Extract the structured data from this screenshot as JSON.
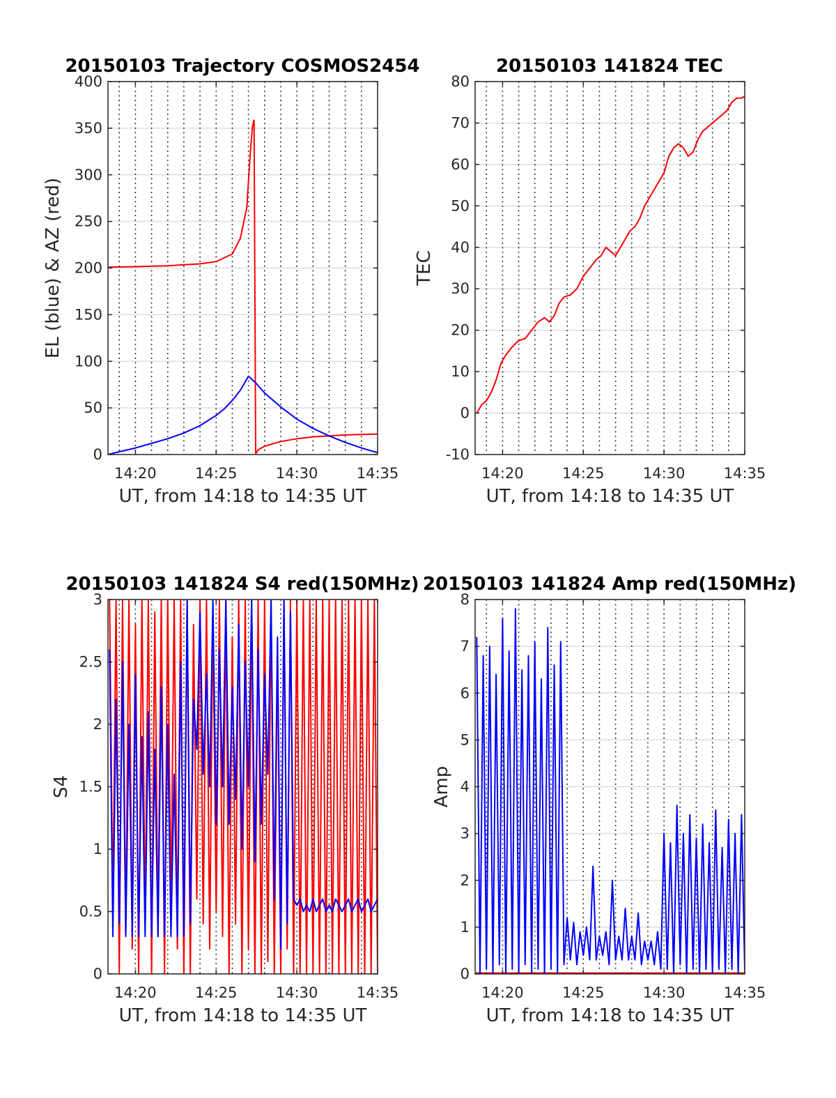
{
  "figure": {
    "colors": {
      "red": "#ff0000",
      "blue": "#0000ff",
      "grid_y": "#dedede",
      "grid_x": "#000000",
      "axis": "#262626"
    }
  },
  "chart_data": [
    {
      "id": "trajectory",
      "type": "line",
      "title": "20150103 Trajectory COSMOS2454",
      "xlabel": "UT, from 14:18 to 14:35 UT",
      "ylabel": "EL (blue) & AZ (red)",
      "xlim": [
        18.3,
        35
      ],
      "ylim": [
        0,
        400
      ],
      "yticks": [
        0,
        50,
        100,
        150,
        200,
        250,
        300,
        350,
        400
      ],
      "xticks": [
        {
          "v": 20,
          "label": "14:20"
        },
        {
          "v": 25,
          "label": "14:25"
        },
        {
          "v": 30,
          "label": "14:30"
        },
        {
          "v": 35,
          "label": "14:35"
        }
      ],
      "vgrid_minutes": [
        19,
        20,
        21,
        22,
        23,
        24,
        25,
        26,
        27,
        28,
        29,
        30,
        31,
        32,
        33,
        34
      ],
      "series": [
        {
          "color": "red",
          "x": [
            18.3,
            20,
            22,
            24,
            25,
            26,
            26.5,
            26.9,
            27.1,
            27.25,
            27.35
          ],
          "y": [
            201,
            201.5,
            202.5,
            204.5,
            207,
            215,
            232,
            265,
            320,
            352,
            359
          ]
        },
        {
          "color": "red",
          "x": [
            27.35,
            27.45
          ],
          "y": [
            359,
            1
          ]
        },
        {
          "color": "red",
          "x": [
            27.45,
            27.6,
            28,
            29,
            30,
            31,
            33,
            35
          ],
          "y": [
            1,
            5,
            9,
            14,
            17,
            19,
            21,
            22
          ]
        },
        {
          "color": "blue",
          "x": [
            18.3,
            19,
            20,
            21,
            22,
            23,
            24,
            25,
            25.5,
            26,
            26.5,
            27,
            27.5,
            28,
            29,
            30,
            31,
            32,
            33,
            34,
            35
          ],
          "y": [
            0,
            3,
            7,
            12,
            17,
            23,
            31,
            42,
            49,
            58,
            69,
            84,
            76,
            66,
            51,
            38,
            28,
            20,
            13,
            7,
            2
          ]
        }
      ]
    },
    {
      "id": "tec",
      "type": "line",
      "title": "20150103 141824 TEC",
      "xlabel": "UT, from 14:18 to 14:35 UT",
      "ylabel": "TEC",
      "xlim": [
        18.3,
        35
      ],
      "ylim": [
        -10,
        80
      ],
      "yticks": [
        -10,
        0,
        10,
        20,
        30,
        40,
        50,
        60,
        70,
        80
      ],
      "xticks": [
        {
          "v": 20,
          "label": "14:20"
        },
        {
          "v": 25,
          "label": "14:25"
        },
        {
          "v": 30,
          "label": "14:30"
        },
        {
          "v": 35,
          "label": "14:35"
        }
      ],
      "vgrid_minutes": [
        19,
        20,
        21,
        22,
        23,
        24,
        25,
        26,
        27,
        28,
        29,
        30,
        31,
        32,
        33,
        34
      ],
      "series": [
        {
          "color": "red",
          "x": [
            18.4,
            18.7,
            19.0,
            19.3,
            19.6,
            19.9,
            20.2,
            20.6,
            21.0,
            21.4,
            21.8,
            22.2,
            22.6,
            22.9,
            23.2,
            23.5,
            23.8,
            24.2,
            24.6,
            25.0,
            25.4,
            25.8,
            26.1,
            26.4,
            26.7,
            27.0,
            27.3,
            27.6,
            27.9,
            28.2,
            28.5,
            28.8,
            29.1,
            29.4,
            29.7,
            30.0,
            30.3,
            30.6,
            30.9,
            31.2,
            31.5,
            31.8,
            32.1,
            32.4,
            32.7,
            33.0,
            33.3,
            33.6,
            33.9,
            34.2,
            34.5,
            34.8,
            35.0
          ],
          "y": [
            0,
            2,
            3,
            5,
            8,
            12,
            14,
            16,
            17.5,
            18,
            20,
            22,
            23,
            22,
            23.5,
            26.5,
            28,
            28.5,
            30,
            33,
            35,
            37,
            38,
            40,
            39,
            38,
            40,
            42,
            44,
            45,
            47,
            50,
            52,
            54,
            56,
            58,
            62,
            64,
            65,
            64,
            62,
            63,
            66,
            68,
            69,
            70,
            71,
            72,
            73,
            75,
            76,
            76,
            76.5
          ]
        }
      ]
    },
    {
      "id": "s4",
      "type": "line",
      "title": "20150103 141824 S4 red(150MHz)",
      "xlabel": "UT, from 14:18 to 14:35 UT",
      "ylabel": "S4",
      "xlim": [
        18.3,
        35
      ],
      "ylim": [
        0,
        3
      ],
      "yticks": [
        0,
        0.5,
        1,
        1.5,
        2,
        2.5,
        3
      ],
      "xticks": [
        {
          "v": 20,
          "label": "14:20"
        },
        {
          "v": 25,
          "label": "14:25"
        },
        {
          "v": 30,
          "label": "14:30"
        },
        {
          "v": 35,
          "label": "14:35"
        }
      ],
      "vgrid_minutes": [
        19,
        20,
        21,
        22,
        23,
        24,
        25,
        26,
        27,
        28,
        29,
        30,
        31,
        32,
        33,
        34
      ],
      "series": [
        {
          "color": "red",
          "x": [
            18.4,
            18.6,
            18.8,
            19.0,
            19.2,
            19.4,
            19.6,
            19.8,
            20.0,
            20.2,
            20.4,
            20.6,
            20.8,
            21.0,
            21.2,
            21.4,
            21.6,
            21.8,
            22.0,
            22.2,
            22.4,
            22.6,
            22.8,
            23.0,
            23.2,
            23.4,
            23.6,
            23.8,
            24.0,
            24.2,
            24.4,
            24.6,
            24.8,
            25.0,
            25.2,
            25.4,
            25.6,
            25.8,
            26.0,
            26.2,
            26.4,
            26.6,
            26.8,
            27.0,
            27.2,
            27.4,
            27.6,
            27.8,
            28.0,
            28.2,
            28.4,
            28.6,
            28.8,
            29.0,
            29.2,
            29.4,
            29.6,
            29.8,
            30.0,
            30.2,
            30.4,
            30.6,
            30.8,
            31.0,
            31.2,
            31.4,
            31.6,
            31.8,
            32.0,
            32.2,
            32.4,
            32.6,
            32.8,
            33.0,
            33.2,
            33.4,
            33.6,
            33.8,
            34.0,
            34.2,
            34.4,
            34.6,
            34.8,
            35.0
          ],
          "y": [
            3,
            0.5,
            3,
            0,
            3,
            0.3,
            3,
            0.2,
            2.8,
            0,
            3,
            0.4,
            3,
            0,
            2.9,
            0.3,
            3,
            0,
            3,
            0.5,
            3,
            0.2,
            3,
            0,
            3,
            0,
            2.8,
            0.6,
            3,
            0.4,
            3,
            0.2,
            2.9,
            0.5,
            3,
            0.3,
            3,
            0,
            2.7,
            0.4,
            3,
            0,
            3,
            0.2,
            3,
            0,
            3,
            0,
            3,
            0.1,
            3,
            0,
            2.6,
            0,
            3,
            0.2,
            3,
            0,
            3,
            0,
            3,
            0,
            3,
            0,
            3,
            0,
            3,
            0,
            3,
            0,
            3,
            0,
            3,
            0,
            3,
            0,
            3,
            0,
            3,
            0,
            3,
            0,
            3,
            0
          ]
        },
        {
          "color": "blue",
          "x": [
            18.4,
            18.6,
            18.8,
            19.0,
            19.2,
            19.4,
            19.6,
            19.8,
            20.0,
            20.2,
            20.4,
            20.6,
            20.8,
            21.0,
            21.2,
            21.4,
            21.6,
            21.8,
            22.0,
            22.2,
            22.4,
            22.6,
            22.8,
            23.0,
            23.2,
            23.4,
            23.6,
            23.8,
            24.0,
            24.2,
            24.4,
            24.6,
            24.8,
            25.0,
            25.2,
            25.4,
            25.6,
            25.8,
            26.0,
            26.2,
            26.4,
            26.6,
            26.8,
            27.0,
            27.2,
            27.4,
            27.6,
            27.8,
            28.0,
            28.2,
            28.4,
            28.6,
            28.8,
            29.0,
            29.2,
            29.4,
            29.6,
            29.8,
            30.0,
            30.2,
            30.4,
            30.6,
            30.8,
            31.0,
            31.2,
            31.4,
            31.6,
            31.8,
            32.0,
            32.2,
            32.4,
            32.6,
            32.8,
            33.0,
            33.2,
            33.4,
            33.6,
            33.8,
            34.0,
            34.2,
            34.4,
            34.6,
            34.8,
            35.0
          ],
          "y": [
            2.6,
            0.3,
            2.2,
            0.4,
            2.5,
            0.3,
            2.0,
            0.3,
            2.4,
            0.3,
            1.9,
            0.3,
            2.1,
            0.3,
            1.8,
            0.3,
            2.3,
            0.3,
            2.0,
            0.3,
            1.6,
            0.3,
            2.5,
            0.3,
            3,
            0.4,
            2.2,
            1.8,
            2.9,
            1.6,
            2.4,
            1.5,
            3,
            1.2,
            2.6,
            1.5,
            3,
            1.2,
            2.3,
            1.4,
            2.8,
            1.0,
            2.5,
            1.5,
            3,
            0.9,
            2.6,
            1.2,
            2.4,
            1.6,
            3,
            0.6,
            2.7,
            0.2,
            3,
            0.4,
            2.9,
            0.6,
            0.55,
            0.6,
            0.5,
            0.55,
            0.5,
            0.6,
            0.5,
            0.55,
            0.6,
            0.5,
            0.55,
            0.5,
            0.6,
            0.55,
            0.5,
            0.55,
            0.6,
            0.5,
            0.55,
            0.6,
            0.5,
            0.55,
            0.6,
            0.5,
            0.55,
            0.6
          ]
        }
      ]
    },
    {
      "id": "amp",
      "type": "line",
      "title": "20150103 141824 Amp red(150MHz)",
      "xlabel": "UT, from 14:18 to 14:35 UT",
      "ylabel": "Amp",
      "xlim": [
        18.3,
        35
      ],
      "ylim": [
        0,
        8
      ],
      "yticks": [
        0,
        1,
        2,
        3,
        4,
        5,
        6,
        7,
        8
      ],
      "xticks": [
        {
          "v": 20,
          "label": "14:20"
        },
        {
          "v": 25,
          "label": "14:25"
        },
        {
          "v": 30,
          "label": "14:30"
        },
        {
          "v": 35,
          "label": "14:35"
        }
      ],
      "vgrid_minutes": [
        19,
        20,
        21,
        22,
        23,
        24,
        25,
        26,
        27,
        28,
        29,
        30,
        31,
        32,
        33,
        34
      ],
      "series": [
        {
          "color": "red",
          "x": [
            18.3,
            35
          ],
          "y": [
            0.02,
            0.02
          ]
        },
        {
          "color": "blue",
          "x": [
            18.4,
            18.6,
            18.8,
            19.0,
            19.2,
            19.4,
            19.6,
            19.8,
            20.0,
            20.2,
            20.4,
            20.6,
            20.8,
            21.0,
            21.2,
            21.4,
            21.6,
            21.8,
            22.0,
            22.2,
            22.4,
            22.6,
            22.8,
            23.0,
            23.2,
            23.4,
            23.6,
            23.8,
            24.0,
            24.2,
            24.4,
            24.6,
            24.8,
            25.0,
            25.2,
            25.4,
            25.6,
            25.8,
            26.0,
            26.2,
            26.4,
            26.6,
            26.8,
            27.0,
            27.2,
            27.4,
            27.6,
            27.8,
            28.0,
            28.2,
            28.4,
            28.6,
            28.8,
            29.0,
            29.2,
            29.4,
            29.6,
            29.8,
            30.0,
            30.2,
            30.4,
            30.6,
            30.8,
            31.0,
            31.2,
            31.4,
            31.6,
            31.8,
            32.0,
            32.2,
            32.4,
            32.6,
            32.8,
            33.0,
            33.2,
            33.4,
            33.6,
            33.8,
            34.0,
            34.2,
            34.4,
            34.6,
            34.8,
            35.0
          ],
          "y": [
            7.2,
            0,
            6.8,
            0.1,
            7.0,
            0,
            6.4,
            0.2,
            7.6,
            0,
            6.9,
            0.1,
            7.8,
            0,
            6.5,
            0.2,
            6.8,
            0,
            7.1,
            0.1,
            6.3,
            0,
            7.4,
            0.1,
            6.6,
            0,
            7.1,
            0.2,
            1.2,
            0.3,
            1.1,
            0.2,
            0.9,
            0.4,
            1.0,
            0.3,
            2.3,
            0.3,
            0.8,
            0.4,
            0.9,
            0.2,
            2.0,
            0.3,
            0.8,
            0.3,
            1.4,
            0.3,
            0.8,
            0.3,
            1.3,
            0.2,
            0.7,
            0.3,
            0.7,
            0.2,
            0.9,
            0.1,
            3.0,
            0.1,
            2.8,
            0,
            3.6,
            0.2,
            3.0,
            0,
            3.4,
            0.1,
            2.9,
            0,
            3.2,
            0.1,
            2.8,
            0,
            3.5,
            0.1,
            2.7,
            0,
            3.3,
            0.1,
            3.0,
            0,
            3.4,
            0.1
          ]
        }
      ]
    }
  ]
}
